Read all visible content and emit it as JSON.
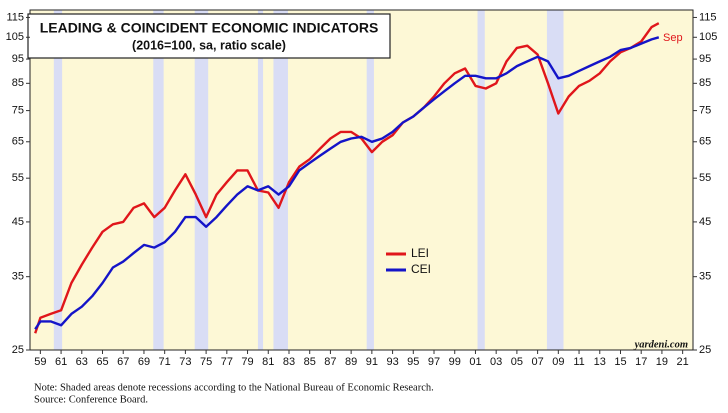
{
  "chart_data": {
    "type": "line",
    "title": "LEADING & COINCIDENT ECONOMIC INDICATORS",
    "subtitle": "(2016=100, sa, ratio scale)",
    "annotations": [
      "Sep",
      "yardeni.com"
    ],
    "notes": [
      "Note: Shaded areas denote recessions according to the National Bureau of Economic Research.",
      "Source: Conference Board."
    ],
    "log_scale": true,
    "legend": "center",
    "background": "#fdf8d6",
    "recession_color": "#d9ddf5",
    "recessions": [
      [
        1960.3,
        1961.1
      ],
      [
        1969.9,
        1970.9
      ],
      [
        1973.9,
        1975.2
      ],
      [
        1980.0,
        1980.5
      ],
      [
        1981.5,
        1982.9
      ],
      [
        1990.5,
        1991.2
      ],
      [
        2001.2,
        2001.9
      ],
      [
        2007.9,
        2009.5
      ]
    ],
    "x": [
      1958.5,
      1959,
      1960,
      1961,
      1962,
      1963,
      1964,
      1965,
      1966,
      1967,
      1968,
      1969,
      1970,
      1971,
      1972,
      1973,
      1974,
      1975,
      1976,
      1977,
      1978,
      1979,
      1980,
      1981,
      1982,
      1983,
      1984,
      1985,
      1986,
      1987,
      1988,
      1989,
      1990,
      1991,
      1992,
      1993,
      1994,
      1995,
      1996,
      1997,
      1998,
      1999,
      2000,
      2001,
      2002,
      2003,
      2004,
      2005,
      2006,
      2007,
      2008,
      2009,
      2010,
      2011,
      2012,
      2013,
      2014,
      2015,
      2016,
      2017,
      2018,
      2018.7
    ],
    "series": [
      {
        "name": "LEI",
        "color": "#e0161b",
        "values": [
          27,
          29,
          29.5,
          30,
          34,
          37,
          40,
          43,
          44.5,
          45,
          48,
          49,
          46,
          48,
          52,
          56,
          51,
          46,
          51,
          54,
          57,
          57,
          52,
          51.5,
          48,
          54,
          58,
          60,
          63,
          66,
          68,
          68,
          66,
          62,
          65,
          67,
          71,
          73,
          76,
          80,
          85,
          89,
          91,
          84,
          83,
          85,
          94,
          100,
          101,
          97,
          85,
          74,
          80,
          84,
          86,
          89,
          94,
          98,
          100,
          103,
          110,
          112
        ]
      },
      {
        "name": "CEI",
        "color": "#1414c8",
        "values": [
          27.5,
          28.5,
          28.5,
          28,
          29.5,
          30.5,
          32,
          34,
          36.5,
          37.5,
          39,
          40.5,
          40,
          41,
          43,
          46,
          46,
          44,
          46,
          48.5,
          51,
          53,
          52,
          53,
          51,
          53,
          57,
          59,
          61,
          63,
          65,
          66,
          66.5,
          65,
          66,
          68,
          71,
          73,
          76,
          79,
          82,
          85,
          88,
          88,
          87,
          87,
          89,
          92,
          94,
          96,
          94,
          87,
          88,
          90,
          92,
          94,
          96,
          99,
          100,
          102,
          104,
          105
        ]
      }
    ],
    "xlim": [
      1958,
      2022
    ],
    "xticks": [
      {
        "value": 1959,
        "label": "59"
      },
      {
        "value": 1961,
        "label": "61"
      },
      {
        "value": 1963,
        "label": "63"
      },
      {
        "value": 1965,
        "label": "65"
      },
      {
        "value": 1967,
        "label": "67"
      },
      {
        "value": 1969,
        "label": "69"
      },
      {
        "value": 1971,
        "label": "71"
      },
      {
        "value": 1973,
        "label": "73"
      },
      {
        "value": 1975,
        "label": "75"
      },
      {
        "value": 1977,
        "label": "77"
      },
      {
        "value": 1979,
        "label": "79"
      },
      {
        "value": 1981,
        "label": "81"
      },
      {
        "value": 1983,
        "label": "83"
      },
      {
        "value": 1985,
        "label": "85"
      },
      {
        "value": 1987,
        "label": "87"
      },
      {
        "value": 1989,
        "label": "89"
      },
      {
        "value": 1991,
        "label": "91"
      },
      {
        "value": 1993,
        "label": "93"
      },
      {
        "value": 1995,
        "label": "95"
      },
      {
        "value": 1997,
        "label": "97"
      },
      {
        "value": 1999,
        "label": "99"
      },
      {
        "value": 2001,
        "label": "01"
      },
      {
        "value": 2003,
        "label": "03"
      },
      {
        "value": 2005,
        "label": "05"
      },
      {
        "value": 2007,
        "label": "07"
      },
      {
        "value": 2009,
        "label": "09"
      },
      {
        "value": 2011,
        "label": "11"
      },
      {
        "value": 2013,
        "label": "13"
      },
      {
        "value": 2015,
        "label": "15"
      },
      {
        "value": 2017,
        "label": "17"
      },
      {
        "value": 2019,
        "label": "19"
      },
      {
        "value": 2021,
        "label": "21"
      }
    ],
    "ylim": [
      25,
      119
    ],
    "yticks": [
      25,
      35,
      45,
      55,
      65,
      75,
      85,
      95,
      105,
      115
    ]
  }
}
